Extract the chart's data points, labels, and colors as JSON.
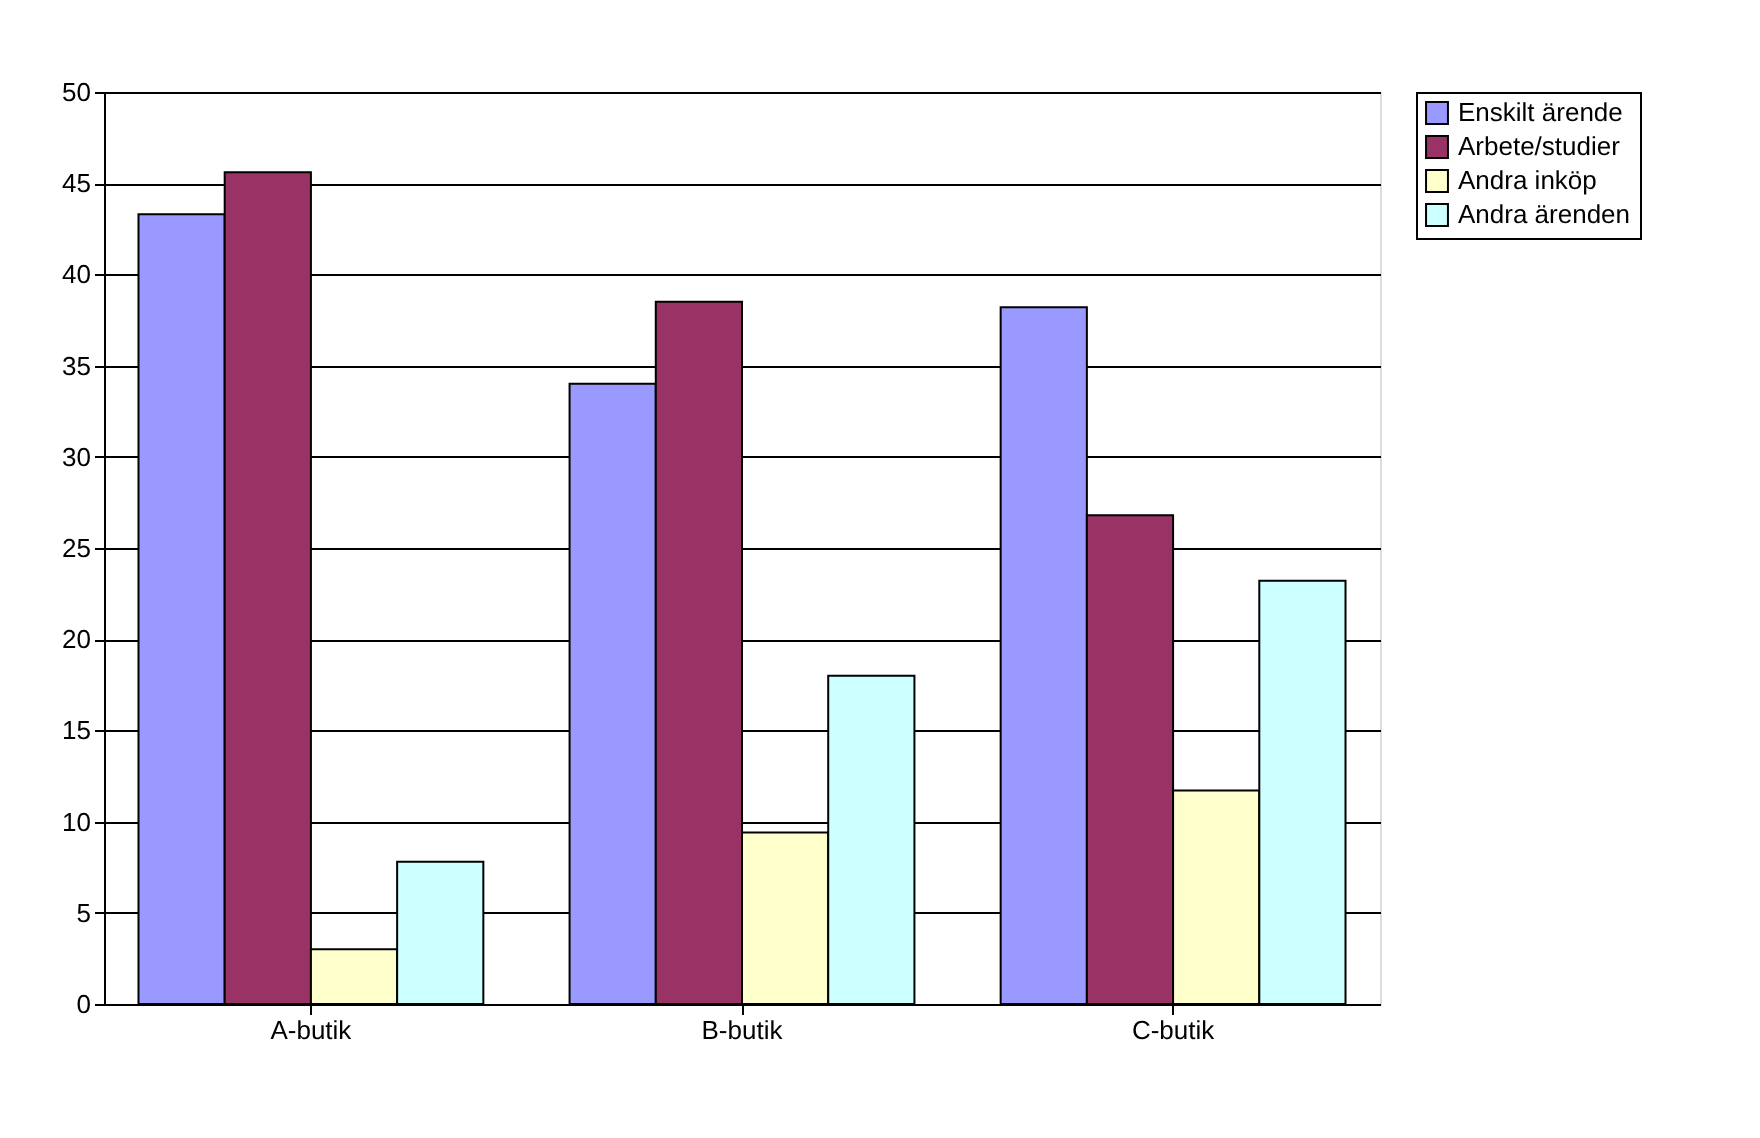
{
  "chart_data": {
    "type": "bar",
    "categories": [
      "A-butik",
      "B-butik",
      "C-butik"
    ],
    "series": [
      {
        "name": "Enskilt ärende",
        "color": "#9999ff",
        "values": [
          43.3,
          34.0,
          38.2
        ]
      },
      {
        "name": "Arbete/studier",
        "color": "#993366",
        "values": [
          45.6,
          38.5,
          26.8
        ]
      },
      {
        "name": "Andra inköp",
        "color": "#ffffcc",
        "values": [
          3.0,
          9.4,
          11.7
        ]
      },
      {
        "name": "Andra ärenden",
        "color": "#ccffff",
        "values": [
          7.8,
          18.0,
          23.2
        ]
      }
    ],
    "ylim": [
      0,
      50
    ],
    "yticks": [
      0,
      5,
      10,
      15,
      20,
      25,
      30,
      35,
      40,
      45,
      50
    ],
    "grid": "y",
    "legend": "right"
  }
}
